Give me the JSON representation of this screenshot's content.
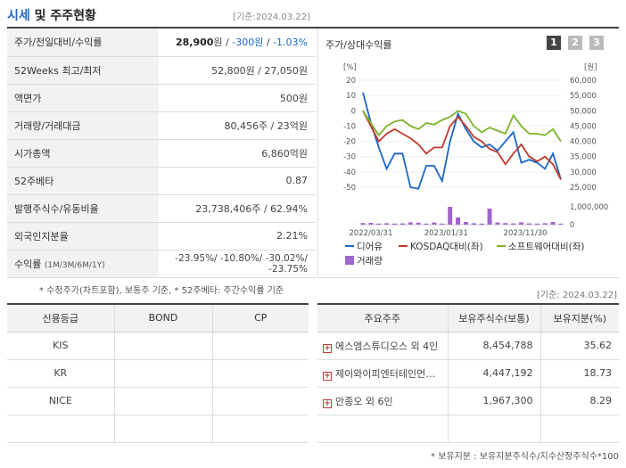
{
  "header": {
    "title_accent": "시세",
    "title_rest": " 및 주주현황",
    "as_of": "[기준:2024.03.22]"
  },
  "info_rows": [
    {
      "label": "주가/전일대비/수익률",
      "price": "28,900",
      "price_unit": "원",
      "sep1": " / ",
      "change": "-300원",
      "sep2": " / ",
      "rate": "-1.03%"
    },
    {
      "label": "52Weeks 최고/최저",
      "value": "52,800원 / 27,050원"
    },
    {
      "label": "액면가",
      "value": "500원"
    },
    {
      "label": "거래량/거래대금",
      "value": "80,456주 / 23억원"
    },
    {
      "label": "시가총액",
      "value": "6,860억원"
    },
    {
      "label": "52주베타",
      "value": "0.87"
    },
    {
      "label": "발행주식수/유동비율",
      "value": "23,738,406주 / 62.94%"
    },
    {
      "label": "외국인지분율",
      "value": "2.21%"
    },
    {
      "label": "수익률",
      "label_sub": "(1M/3M/6M/1Y)",
      "value": "-23.95%/ -10.80%/ -30.02%/ -23.75%"
    }
  ],
  "chart_panel": {
    "title": "주가/상대수익률",
    "pages": [
      "1",
      "2",
      "3"
    ],
    "active_page": "1"
  },
  "chart_data": {
    "type": "line",
    "x_ticks": [
      "2022/03/31",
      "2023/01/31",
      "2023/11/30"
    ],
    "left_axis": {
      "unit": "[%]",
      "ticks": [
        "20",
        "10",
        "0",
        "-10",
        "-20",
        "-30",
        "-40",
        "-50"
      ],
      "range": [
        -50,
        20
      ]
    },
    "right_axis": {
      "unit": "[원]",
      "ticks": [
        "60,000",
        "55,000",
        "50,000",
        "45,000",
        "40,000",
        "35,000",
        "30,000",
        "25,000"
      ],
      "range": [
        25000,
        60000
      ]
    },
    "volume_axis": {
      "ticks": [
        "1,000,000",
        "0"
      ],
      "range": [
        0,
        1000000
      ]
    },
    "series": [
      {
        "name": "디어유",
        "color": "#1a66c8",
        "axis": "right",
        "values": [
          56000,
          46000,
          38000,
          31000,
          36000,
          36000,
          25000,
          24500,
          32000,
          32000,
          27000,
          40000,
          49000,
          44000,
          40000,
          38000,
          39000,
          37000,
          40000,
          43000,
          33000,
          34000,
          33000,
          31000,
          36000,
          27500
        ]
      },
      {
        "name": "KOSDAQ대비(좌)",
        "color": "#c0392b",
        "axis": "left",
        "values": [
          0,
          -10,
          -20,
          -15,
          -12,
          -15,
          -18,
          -22,
          -28,
          -24,
          -24,
          -10,
          -4,
          -10,
          -17,
          -20,
          -25,
          -27,
          -35,
          -28,
          -22,
          -30,
          -33,
          -30,
          -35,
          -45
        ]
      },
      {
        "name": "소프트웨어대비(좌)",
        "color": "#7cb32a",
        "axis": "left",
        "values": [
          0,
          -8,
          -16,
          -10,
          -7,
          -6,
          -10,
          -12,
          -8,
          -9,
          -6,
          -4,
          0,
          -2,
          -10,
          -14,
          -11,
          -13,
          -15,
          -3,
          -10,
          -15,
          -15,
          -16,
          -12,
          -20
        ]
      },
      {
        "name": "거래량",
        "color": "#a066cc",
        "axis": "volume",
        "values": [
          90000,
          100000,
          60000,
          80000,
          60000,
          70000,
          130000,
          110000,
          60000,
          120000,
          60000,
          1000000,
          400000,
          150000,
          80000,
          60000,
          900000,
          120000,
          90000,
          70000,
          130000,
          70000,
          60000,
          80000,
          150000,
          60000
        ]
      }
    ]
  },
  "footnote_left": "* 수정주가(차트포함), 보통주 기준, * 52주베타: 주간수익률 기준",
  "as_of_bottom": "[기준: 2024.03.22]",
  "credit_table": {
    "headers": [
      "신용등급",
      "BOND",
      "CP"
    ],
    "rows": [
      [
        "KIS",
        "",
        ""
      ],
      [
        "KR",
        "",
        ""
      ],
      [
        "NICE",
        "",
        ""
      ],
      [
        "",
        "",
        ""
      ]
    ]
  },
  "holder_table": {
    "headers": [
      "주요주주",
      "보유주식수(보통)",
      "보유지분(%)"
    ],
    "rows": [
      [
        "에스엠스튜디오스 외 4인",
        "8,454,788",
        "35.62"
      ],
      [
        "제이와이피엔터테인먼…",
        "4,447,192",
        "18.73"
      ],
      [
        "안종오 외 6인",
        "1,967,300",
        "8.29"
      ]
    ]
  },
  "footnote_right": "* 보유지분 : 보유지분주식수/지수산정주식수*100"
}
